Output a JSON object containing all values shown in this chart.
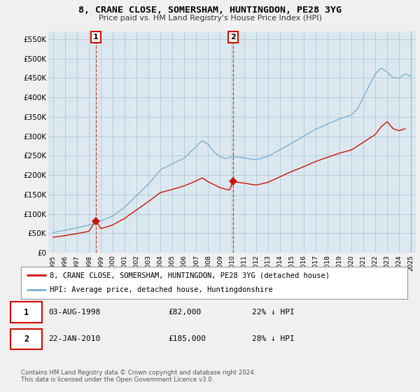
{
  "title": "8, CRANE CLOSE, SOMERSHAM, HUNTINGDON, PE28 3YG",
  "subtitle": "Price paid vs. HM Land Registry's House Price Index (HPI)",
  "ylabel_ticks": [
    0,
    50000,
    100000,
    150000,
    200000,
    250000,
    300000,
    350000,
    400000,
    450000,
    500000,
    550000
  ],
  "ylabel_labels": [
    "£0",
    "£50K",
    "£100K",
    "£150K",
    "£200K",
    "£250K",
    "£300K",
    "£350K",
    "£400K",
    "£450K",
    "£500K",
    "£550K"
  ],
  "ylim": [
    0,
    570000
  ],
  "hpi_color": "#7ab0d4",
  "price_color": "#cc1100",
  "transaction1": {
    "date_num": 1998.58,
    "price": 82000,
    "label": "1",
    "date_str": "03-AUG-1998",
    "price_str": "£82,000",
    "pct": "22% ↓ HPI"
  },
  "transaction2": {
    "date_num": 2010.06,
    "price": 185000,
    "label": "2",
    "date_str": "22-JAN-2010",
    "price_str": "£185,000",
    "pct": "28% ↓ HPI"
  },
  "legend_line1": "8, CRANE CLOSE, SOMERSHAM, HUNTINGDON, PE28 3YG (detached house)",
  "legend_line2": "HPI: Average price, detached house, Huntingdonshire",
  "footer": "Contains HM Land Registry data © Crown copyright and database right 2024.\nThis data is licensed under the Open Government Licence v3.0.",
  "bg_color": "#f0f0f0",
  "plot_bg": "#dce8f0",
  "grid_color": "#b0c8d8"
}
